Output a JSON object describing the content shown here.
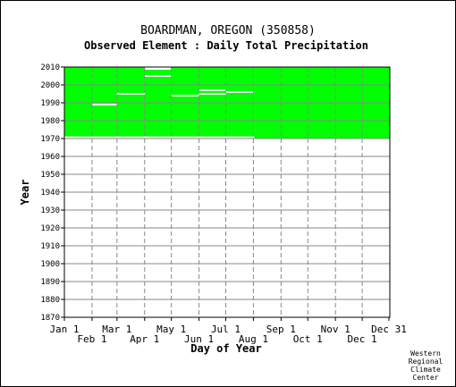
{
  "title": "BOARDMAN, OREGON   (350858)",
  "subtitle": "Observed Element : Daily Total Precipitation",
  "credit": [
    "Western",
    "Regional",
    "Climate",
    "Center"
  ],
  "colors": {
    "data": "#00ff00",
    "gap": "#ffffff",
    "grid": "#888888",
    "axis": "#000000"
  },
  "chart_data": {
    "type": "heatmap",
    "title": "BOARDMAN, OREGON   (350858)",
    "subtitle": "Observed Element : Daily Total Precipitation",
    "xlabel": "Day of Year",
    "ylabel": "Year",
    "x_range": [
      "Jan 1",
      "Dec 31"
    ],
    "ylim": [
      1870,
      2010
    ],
    "grid": true,
    "x_ticks_upper": [
      "Jan 1",
      "Mar 1",
      "May 1",
      "Jul 1",
      "Sep 1",
      "Nov 1",
      "Dec 31"
    ],
    "x_ticks_lower": [
      "Feb 1",
      "Apr 1",
      "Jun 1",
      "Aug 1",
      "Oct 1",
      "Dec 1"
    ],
    "x_tick_days_upper": [
      1,
      60,
      121,
      182,
      244,
      305,
      365
    ],
    "x_tick_days_lower": [
      32,
      91,
      152,
      213,
      274,
      335
    ],
    "y_ticks": [
      1870,
      1880,
      1890,
      1900,
      1910,
      1920,
      1930,
      1940,
      1950,
      1960,
      1970,
      1980,
      1990,
      2000,
      2010
    ],
    "coverage": [
      {
        "label": "observed",
        "from_year": 1971.2,
        "to_year": 2010,
        "from_day": 1,
        "to_day": 214
      },
      {
        "label": "observed",
        "from_year": 1970.1,
        "to_year": 2010,
        "from_day": 214,
        "to_day": 366
      }
    ],
    "gaps": [
      {
        "year": 1989,
        "from_day": 32,
        "to_day": 60
      },
      {
        "year": 1995,
        "from_day": 60,
        "to_day": 91
      },
      {
        "year": 1994,
        "from_day": 121,
        "to_day": 152
      },
      {
        "year": 1995,
        "from_day": 152,
        "to_day": 182
      },
      {
        "year": 1997,
        "from_day": 152,
        "to_day": 182
      },
      {
        "year": 1996,
        "from_day": 182,
        "to_day": 213
      },
      {
        "year": 2005,
        "from_day": 91,
        "to_day": 121
      },
      {
        "year": 2009,
        "from_day": 91,
        "to_day": 121
      },
      {
        "year": 2010,
        "from_day": 91,
        "to_day": 121
      }
    ]
  }
}
